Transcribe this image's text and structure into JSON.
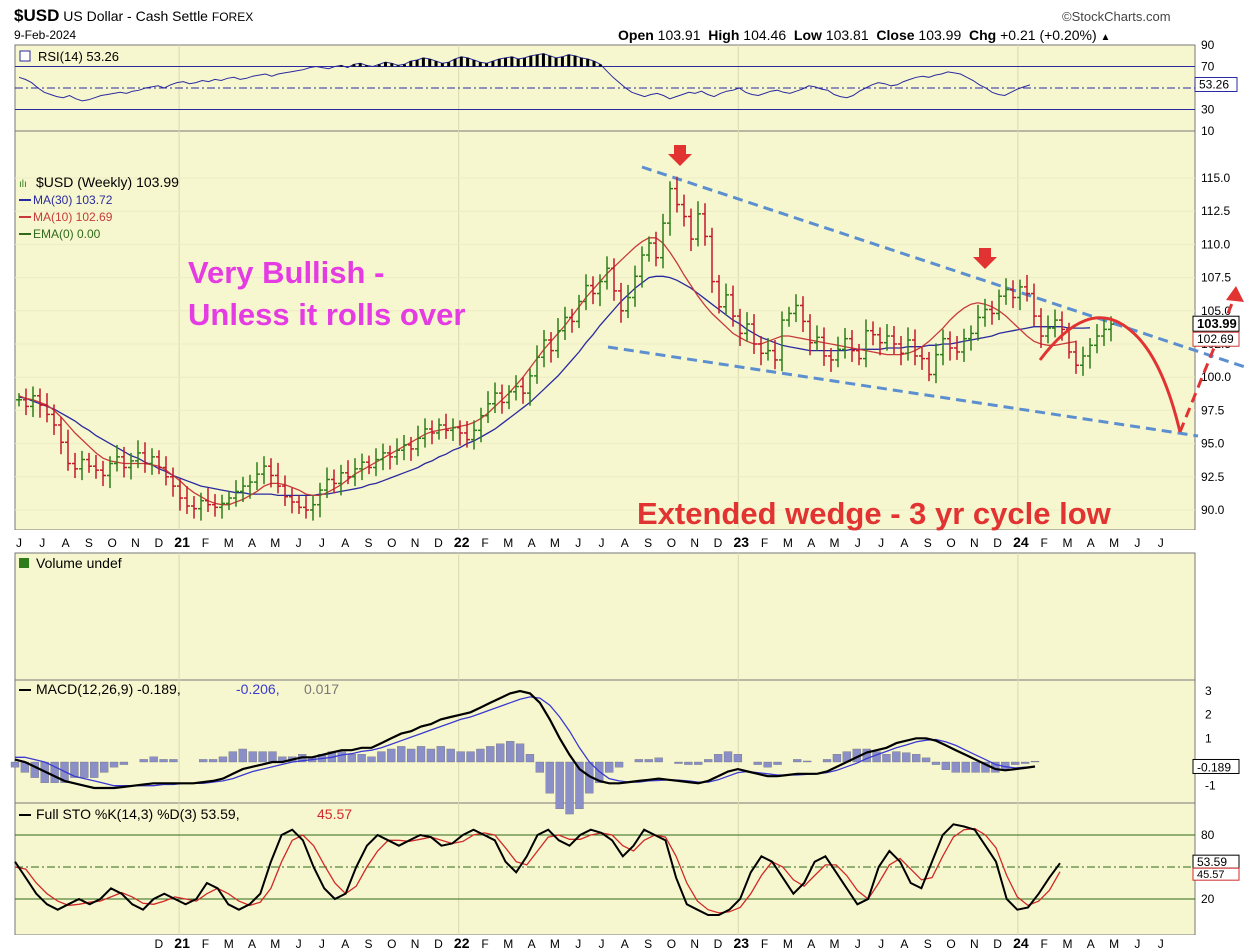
{
  "header": {
    "symbol": "$USD",
    "name": "US Dollar - Cash Settle",
    "exchange": "FOREX",
    "date": "9-Feb-2024",
    "brand": "©StockCharts.com",
    "open_label": "Open",
    "open": "103.91",
    "high_label": "High",
    "high": "104.46",
    "low_label": "Low",
    "low": "103.81",
    "close_label": "Close",
    "close": "103.99",
    "chg_label": "Chg",
    "chg": "+0.21 (+0.20%)"
  },
  "colors": {
    "background": "#f7f7cf",
    "price_up": "#2e7d1a",
    "price_down": "#c2182b",
    "ma30": "#2a2aa0",
    "ma10": "#c83a3a",
    "wedge": "#5b8fd0",
    "annotation_magenta": "#e53be3",
    "annotation_red": "#e23333",
    "macd_hist": "#8a8fc8"
  },
  "annotations": {
    "bullish_line1": "Very Bullish -",
    "bullish_line2": "Unless it rolls over",
    "wedge_text": "Extended wedge - 3 yr cycle low"
  },
  "chart_data": [
    {
      "panel": "rsi",
      "type": "line",
      "legend": "RSI(14) 53.26",
      "y_ticks": [
        "90",
        "70",
        "50",
        "30",
        "10"
      ],
      "ylim": [
        10,
        90
      ],
      "reference_lines": [
        70,
        50,
        30
      ],
      "last_value": 53.26,
      "last_label": "53.26",
      "values": [
        60,
        58,
        55,
        50,
        46,
        44,
        42,
        41,
        43,
        40,
        38,
        39,
        41,
        43,
        44,
        45,
        46,
        45,
        47,
        48,
        50,
        51,
        52,
        50,
        53,
        55,
        56,
        54,
        55,
        57,
        56,
        58,
        57,
        59,
        60,
        58,
        59,
        61,
        62,
        63,
        61,
        63,
        64,
        65,
        66,
        67,
        69,
        70,
        69,
        68,
        70,
        71,
        69,
        72,
        73,
        71,
        70,
        72,
        74,
        73,
        71,
        72,
        75,
        76,
        78,
        77,
        75,
        73,
        74,
        77,
        79,
        78,
        76,
        74,
        73,
        75,
        77,
        78,
        79,
        77,
        78,
        80,
        81,
        82,
        80,
        78,
        79,
        81,
        80,
        78,
        77,
        75,
        72,
        66,
        60,
        55,
        50,
        46,
        44,
        42,
        44,
        45,
        43,
        40,
        42,
        44,
        46,
        45,
        47,
        44,
        42,
        45,
        47,
        48,
        50,
        46,
        44,
        43,
        45,
        47,
        48,
        46,
        45,
        47,
        49,
        52,
        51,
        49,
        48,
        44,
        42,
        41,
        43,
        47,
        50,
        53,
        55,
        54,
        52,
        53,
        56,
        58,
        60,
        61,
        60,
        62,
        63,
        65,
        64,
        63,
        60,
        57,
        53,
        50,
        46,
        44,
        43,
        46,
        49,
        51,
        53
      ]
    },
    {
      "panel": "price",
      "type": "ohlc",
      "legend": [
        "$USD (Weekly) 103.99",
        "MA(30) 103.72",
        "MA(10) 102.69",
        "EMA(0) 0.00"
      ],
      "y_ticks": [
        "115.0",
        "112.5",
        "110.0",
        "107.5",
        "105.0",
        "102.5",
        "100.0",
        "97.5",
        "95.0",
        "92.5",
        "90.0"
      ],
      "ylim": [
        89,
        117
      ],
      "close_label": "103.99",
      "ma10_label": "102.69",
      "x_tick_labels": [
        "J",
        "J",
        "A",
        "S",
        "O",
        "N",
        "D",
        "21",
        "F",
        "M",
        "A",
        "M",
        "J",
        "J",
        "A",
        "S",
        "O",
        "N",
        "D",
        "22",
        "F",
        "M",
        "A",
        "M",
        "J",
        "J",
        "A",
        "S",
        "O",
        "N",
        "D",
        "23",
        "F",
        "M",
        "A",
        "M",
        "J",
        "J",
        "A",
        "S",
        "O",
        "N",
        "D",
        "24",
        "F",
        "M",
        "A",
        "M",
        "J",
        "J"
      ],
      "closes": [
        98.3,
        97.8,
        98.6,
        97.9,
        97.2,
        96.4,
        95.1,
        93.5,
        93.1,
        93.8,
        93.3,
        93.0,
        92.6,
        93.5,
        94.0,
        93.2,
        93.7,
        94.3,
        93.5,
        94.0,
        93.2,
        92.5,
        91.8,
        90.9,
        90.3,
        90.1,
        90.7,
        90.4,
        90.2,
        90.5,
        90.9,
        91.4,
        91.8,
        92.1,
        92.7,
        93.3,
        92.6,
        91.8,
        91.0,
        90.6,
        90.2,
        90.0,
        90.4,
        91.5,
        92.3,
        92.0,
        92.8,
        92.5,
        93.1,
        93.6,
        93.2,
        93.8,
        94.3,
        94.0,
        94.5,
        94.9,
        94.6,
        95.4,
        96.1,
        95.8,
        96.4,
        96.0,
        96.2,
        95.8,
        95.3,
        96.0,
        97.1,
        98.0,
        98.8,
        98.1,
        98.9,
        99.3,
        98.8,
        100.1,
        101.5,
        102.8,
        102.0,
        103.5,
        104.5,
        104.2,
        105.7,
        106.9,
        106.3,
        107.2,
        108.2,
        106.5,
        105.0,
        106.0,
        107.6,
        109.2,
        110.1,
        109.0,
        111.6,
        114.2,
        113.0,
        112.1,
        110.4,
        112.3,
        110.6,
        107.2,
        105.3,
        106.2,
        104.6,
        103.3,
        104.0,
        102.5,
        101.8,
        102.0,
        101.3,
        104.3,
        104.8,
        105.4,
        104.2,
        102.6,
        103.0,
        101.6,
        101.3,
        102.1,
        102.9,
        102.0,
        101.4,
        103.5,
        103.2,
        102.6,
        103.1,
        102.5,
        101.8,
        102.8,
        101.6,
        101.4,
        100.2,
        101.7,
        102.9,
        102.2,
        101.9,
        102.9,
        103.3,
        104.5,
        105.1,
        104.8,
        106.1,
        106.6,
        106.0,
        106.8,
        106.3,
        104.6,
        103.1,
        103.7,
        104.3,
        103.6,
        101.9,
        100.9,
        101.6,
        102.4,
        103.1,
        103.6,
        103.99
      ],
      "ma30": [
        98.5,
        98.4,
        98.2,
        98.0,
        97.8,
        97.6,
        97.3,
        97.0,
        96.7,
        96.3,
        96.0,
        95.6,
        95.3,
        95.0,
        94.7,
        94.4,
        94.1,
        93.9,
        93.6,
        93.4,
        93.1,
        92.9,
        92.6,
        92.4,
        92.2,
        92.0,
        91.8,
        91.7,
        91.6,
        91.5,
        91.4,
        91.3,
        91.3,
        91.2,
        91.2,
        91.2,
        91.2,
        91.1,
        91.1,
        91.1,
        91.1,
        91.1,
        91.1,
        91.2,
        91.2,
        91.3,
        91.4,
        91.5,
        91.6,
        91.7,
        91.9,
        92.0,
        92.2,
        92.4,
        92.6,
        92.8,
        93.0,
        93.2,
        93.5,
        93.7,
        94.0,
        94.2,
        94.5,
        94.7,
        95.0,
        95.2,
        95.5,
        95.8,
        96.1,
        96.5,
        96.9,
        97.3,
        97.7,
        98.1,
        98.6,
        99.1,
        99.6,
        100.1,
        100.7,
        101.3,
        101.9,
        102.6,
        103.2,
        103.9,
        104.5,
        105.1,
        105.7,
        106.2,
        106.7,
        107.1,
        107.5,
        107.6,
        107.6,
        107.5,
        107.3,
        107.0,
        106.7,
        106.3,
        105.9,
        105.5,
        105.1,
        104.7,
        104.3,
        104.0,
        103.6,
        103.3,
        103.0,
        102.8,
        102.6,
        102.4,
        102.3,
        102.2,
        102.1,
        102.0,
        102.0,
        102.0,
        102.0,
        102.0,
        102.0,
        102.1,
        102.1,
        102.1,
        102.1,
        102.1,
        102.2,
        102.2,
        102.2,
        102.3,
        102.3,
        102.3,
        102.4,
        102.4,
        102.5,
        102.5,
        102.6,
        102.7,
        102.8,
        102.9,
        103.0,
        103.1,
        103.3,
        103.4,
        103.5,
        103.6,
        103.7,
        103.8,
        103.8,
        103.8,
        103.8,
        103.8,
        103.7,
        103.7,
        103.7,
        103.72
      ],
      "ma10": [
        98.6,
        98.4,
        98.3,
        98.1,
        97.9,
        97.5,
        97.0,
        96.4,
        95.8,
        95.3,
        94.8,
        94.3,
        93.9,
        93.7,
        93.6,
        93.5,
        93.5,
        93.5,
        93.5,
        93.4,
        93.3,
        93.0,
        92.6,
        92.2,
        91.7,
        91.3,
        91.0,
        90.7,
        90.5,
        90.4,
        90.4,
        90.6,
        90.8,
        91.1,
        91.4,
        91.8,
        92.0,
        92.0,
        91.9,
        91.7,
        91.5,
        91.2,
        91.1,
        91.1,
        91.3,
        91.6,
        91.9,
        92.3,
        92.7,
        93.0,
        93.3,
        93.6,
        93.9,
        94.2,
        94.5,
        94.8,
        95.1,
        95.4,
        95.7,
        95.9,
        96.0,
        96.1,
        96.2,
        96.3,
        96.4,
        96.6,
        96.9,
        97.3,
        97.8,
        98.3,
        98.8,
        99.4,
        100.0,
        100.7,
        101.4,
        102.1,
        102.7,
        103.3,
        103.9,
        104.6,
        105.3,
        106.0,
        106.6,
        107.2,
        107.8,
        108.3,
        108.8,
        109.3,
        109.8,
        110.2,
        110.5,
        110.5,
        110.1,
        109.4,
        108.6,
        107.7,
        106.9,
        106.1,
        105.4,
        104.8,
        104.3,
        103.8,
        103.3,
        103.0,
        102.7,
        102.5,
        102.5,
        102.7,
        102.9,
        103.1,
        103.1,
        103.0,
        102.9,
        102.8,
        102.7,
        102.6,
        102.5,
        102.4,
        102.3,
        102.2,
        102.1,
        102.0,
        101.9,
        101.8,
        101.7,
        101.7,
        101.7,
        101.8,
        102.0,
        102.3,
        102.7,
        103.2,
        103.7,
        104.3,
        104.8,
        105.2,
        105.5,
        105.6,
        105.5,
        105.3,
        105.0,
        104.6,
        104.1,
        103.6,
        103.1,
        102.7,
        102.5,
        102.4,
        102.4,
        102.5,
        102.6,
        102.69
      ]
    },
    {
      "panel": "volume",
      "type": "bar",
      "legend": "Volume undef",
      "values": []
    },
    {
      "panel": "macd",
      "type": "line",
      "legend": "MACD(12,26,9) -0.189,",
      "legend_signal": "-0.206,",
      "legend_hist": "0.017",
      "y_ticks": [
        "3",
        "2",
        "1",
        "-1"
      ],
      "ylim": [
        -1.8,
        3.5
      ],
      "last_label": "-0.189",
      "macd": [
        0.1,
        0.0,
        -0.2,
        -0.4,
        -0.6,
        -0.8,
        -0.9,
        -1.0,
        -1.1,
        -1.1,
        -1.1,
        -1.05,
        -1.0,
        -0.95,
        -0.9,
        -0.9,
        -0.9,
        -0.9,
        -0.9,
        -0.85,
        -0.8,
        -0.7,
        -0.5,
        -0.3,
        -0.2,
        -0.1,
        0.0,
        0.0,
        0.1,
        0.2,
        0.2,
        0.3,
        0.4,
        0.5,
        0.5,
        0.6,
        0.6,
        0.8,
        1.0,
        1.2,
        1.3,
        1.5,
        1.6,
        1.8,
        1.9,
        2.0,
        2.1,
        2.3,
        2.5,
        2.7,
        2.9,
        3.0,
        2.9,
        2.5,
        1.8,
        1.0,
        0.3,
        -0.3,
        -0.6,
        -0.8,
        -0.9,
        -0.9,
        -0.85,
        -0.8,
        -0.75,
        -0.7,
        -0.75,
        -0.8,
        -0.85,
        -0.9,
        -0.8,
        -0.6,
        -0.4,
        -0.3,
        -0.4,
        -0.5,
        -0.6,
        -0.6,
        -0.55,
        -0.5,
        -0.5,
        -0.5,
        -0.4,
        -0.2,
        0.0,
        0.2,
        0.4,
        0.5,
        0.6,
        0.8,
        0.9,
        1.0,
        1.0,
        0.9,
        0.7,
        0.5,
        0.3,
        0.1,
        -0.1,
        -0.3,
        -0.35,
        -0.3,
        -0.25,
        -0.189
      ],
      "signal": [
        0.2,
        0.2,
        0.1,
        0.0,
        -0.2,
        -0.4,
        -0.6,
        -0.7,
        -0.8,
        -0.9,
        -1.0,
        -1.0,
        -1.0,
        -1.0,
        -1.0,
        -0.95,
        -0.95,
        -0.9,
        -0.9,
        -0.9,
        -0.85,
        -0.8,
        -0.7,
        -0.55,
        -0.4,
        -0.3,
        -0.2,
        -0.1,
        0.0,
        0.05,
        0.1,
        0.15,
        0.2,
        0.3,
        0.35,
        0.45,
        0.5,
        0.6,
        0.75,
        0.9,
        1.05,
        1.2,
        1.35,
        1.5,
        1.65,
        1.8,
        1.9,
        2.05,
        2.2,
        2.35,
        2.5,
        2.65,
        2.75,
        2.7,
        2.4,
        1.9,
        1.3,
        0.6,
        0.0,
        -0.4,
        -0.7,
        -0.8,
        -0.85,
        -0.85,
        -0.8,
        -0.78,
        -0.75,
        -0.77,
        -0.8,
        -0.85,
        -0.85,
        -0.75,
        -0.6,
        -0.45,
        -0.4,
        -0.45,
        -0.5,
        -0.55,
        -0.55,
        -0.55,
        -0.52,
        -0.5,
        -0.45,
        -0.35,
        -0.2,
        -0.05,
        0.15,
        0.3,
        0.45,
        0.6,
        0.72,
        0.85,
        0.92,
        0.95,
        0.85,
        0.7,
        0.5,
        0.3,
        0.1,
        -0.1,
        -0.2,
        -0.25,
        -0.22,
        -0.206
      ]
    },
    {
      "panel": "stochastic",
      "type": "line",
      "legend": "Full STO %K(14,3) %D(3) 53.59,",
      "legend_d": "45.57",
      "y_ticks": [
        "80",
        "50",
        "20"
      ],
      "ylim": [
        0,
        100
      ],
      "reference_lines": [
        80,
        50,
        20
      ],
      "k_label": "53.59",
      "d_label": "45.57",
      "k": [
        55,
        40,
        25,
        15,
        10,
        15,
        20,
        15,
        20,
        30,
        25,
        15,
        10,
        20,
        25,
        20,
        15,
        20,
        35,
        30,
        15,
        10,
        15,
        25,
        55,
        80,
        85,
        75,
        50,
        30,
        20,
        25,
        50,
        70,
        80,
        75,
        70,
        75,
        80,
        78,
        70,
        72,
        80,
        85,
        80,
        75,
        55,
        45,
        60,
        80,
        85,
        75,
        70,
        80,
        85,
        82,
        75,
        60,
        70,
        85,
        80,
        75,
        40,
        15,
        10,
        5,
        5,
        10,
        20,
        45,
        60,
        55,
        40,
        25,
        35,
        55,
        60,
        45,
        30,
        15,
        20,
        50,
        65,
        55,
        35,
        30,
        55,
        80,
        90,
        88,
        85,
        70,
        55,
        20,
        10,
        12,
        25,
        40,
        53.59
      ],
      "d": [
        50,
        48,
        35,
        25,
        18,
        14,
        15,
        17,
        18,
        22,
        26,
        22,
        16,
        15,
        18,
        22,
        20,
        18,
        25,
        30,
        25,
        18,
        14,
        17,
        30,
        55,
        75,
        80,
        70,
        52,
        35,
        25,
        32,
        50,
        65,
        75,
        75,
        74,
        76,
        78,
        75,
        72,
        74,
        80,
        82,
        80,
        68,
        55,
        52,
        65,
        78,
        80,
        76,
        76,
        80,
        82,
        80,
        70,
        65,
        75,
        80,
        78,
        60,
        35,
        18,
        10,
        7,
        8,
        12,
        25,
        42,
        55,
        50,
        38,
        32,
        42,
        52,
        52,
        42,
        28,
        20,
        35,
        52,
        58,
        48,
        38,
        40,
        60,
        78,
        85,
        86,
        80,
        68,
        42,
        22,
        14,
        18,
        28,
        45.57
      ]
    }
  ]
}
